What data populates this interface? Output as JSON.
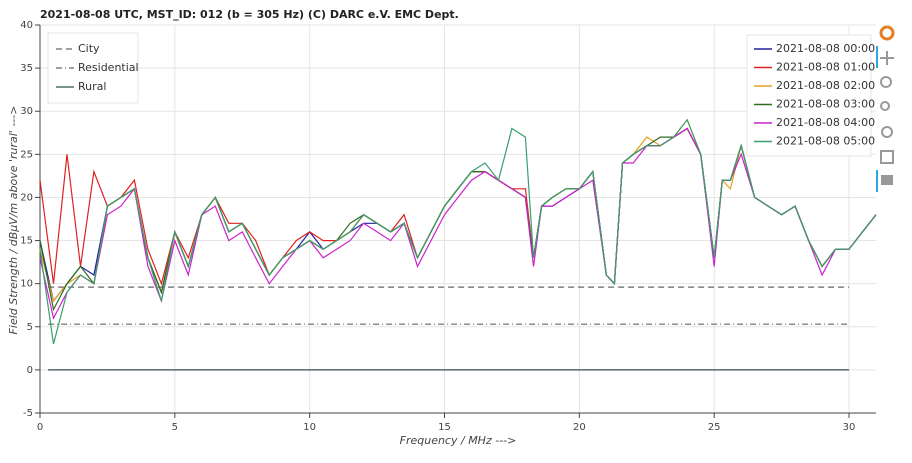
{
  "chart_data": {
    "type": "line",
    "title": "2021-08-08  UTC,  MST_ID:  012   (b = 305 Hz)   (C) DARC e.V. EMC Dept.",
    "x_label": "Frequency / MHz --->",
    "y_label": "Field Strength / dBµV/m above 'rural' --->",
    "xlim": [
      0,
      31
    ],
    "ylim": [
      -5,
      40
    ],
    "xticks": [
      0,
      5,
      10,
      15,
      20,
      25,
      30
    ],
    "yticks": [
      -5,
      0,
      5,
      10,
      15,
      20,
      25,
      30,
      35,
      40
    ],
    "grid": true,
    "reference_lines": [
      {
        "name": "City",
        "x": [
          0.3,
          30
        ],
        "values": [
          9.6,
          9.6
        ],
        "color": "#666666",
        "dash": "dash"
      },
      {
        "name": "Residential",
        "x": [
          0.3,
          30
        ],
        "values": [
          5.3,
          5.3
        ],
        "color": "#666666",
        "dash": "dashdot"
      },
      {
        "name": "Rural",
        "x": [
          0.3,
          30
        ],
        "values": [
          0,
          0
        ],
        "color": "#2f4f4f",
        "dash": "solid"
      }
    ],
    "x": [
      0,
      0.5,
      1,
      1.5,
      2,
      2.5,
      3,
      3.5,
      4,
      4.5,
      5,
      5.5,
      6,
      6.5,
      7,
      7.5,
      8,
      8.5,
      9,
      9.5,
      10,
      10.5,
      11,
      11.5,
      12,
      12.5,
      13,
      13.5,
      14,
      14.5,
      15,
      15.5,
      16,
      16.5,
      17,
      17.5,
      18,
      18.3,
      18.6,
      19,
      19.5,
      20,
      20.5,
      21,
      21.3,
      21.6,
      22,
      22.5,
      23,
      23.5,
      24,
      24.5,
      25,
      25.3,
      25.6,
      26,
      26.5,
      27,
      27.5,
      28,
      28.5,
      29,
      29.5,
      30,
      30.5,
      31
    ],
    "series": [
      {
        "name": "2021-08-08 00:00",
        "color": "#2020a0",
        "values": [
          15,
          8,
          10,
          12,
          11,
          19,
          20,
          21,
          13,
          9,
          16,
          12,
          18,
          20,
          16,
          17,
          14,
          11,
          13,
          14,
          16,
          14,
          15,
          16,
          17,
          17,
          16,
          17,
          13,
          16,
          19,
          21,
          23,
          23,
          22,
          21,
          20,
          13,
          19,
          19,
          20,
          21,
          23,
          11,
          10,
          24,
          25,
          26,
          26,
          27,
          28,
          25,
          13,
          22,
          22,
          26,
          20,
          19,
          18,
          19,
          15,
          12,
          14,
          14,
          16,
          18
        ]
      },
      {
        "name": "2021-08-08 01:00",
        "color": "#dd2222",
        "values": [
          22,
          10,
          25,
          12,
          23,
          19,
          20,
          22,
          14,
          10,
          16,
          13,
          18,
          20,
          17,
          17,
          15,
          11,
          13,
          15,
          16,
          15,
          15,
          16,
          18,
          17,
          16,
          18,
          13,
          16,
          19,
          21,
          23,
          23,
          22,
          21,
          21,
          13,
          19,
          20,
          21,
          21,
          23,
          11,
          10,
          24,
          25,
          26,
          26,
          27,
          28,
          25,
          13,
          22,
          22,
          26,
          20,
          19,
          18,
          19,
          15,
          12,
          14,
          14,
          16,
          18
        ]
      },
      {
        "name": "2021-08-08 02:00",
        "color": "#e8a020",
        "values": [
          14,
          8,
          10,
          11,
          10,
          19,
          20,
          21,
          13,
          9,
          16,
          12,
          18,
          20,
          16,
          17,
          14,
          11,
          13,
          14,
          15,
          14,
          15,
          16,
          18,
          17,
          16,
          17,
          13,
          16,
          19,
          21,
          23,
          23,
          22,
          21,
          20,
          13,
          19,
          20,
          21,
          21,
          23,
          11,
          10,
          24,
          25,
          27,
          26,
          27,
          29,
          25,
          13,
          22,
          21,
          26,
          20,
          19,
          18,
          19,
          15,
          12,
          14,
          14,
          16,
          18
        ]
      },
      {
        "name": "2021-08-08 03:00",
        "color": "#2f6b1f",
        "values": [
          15,
          7,
          10,
          12,
          10,
          19,
          20,
          21,
          13,
          9,
          16,
          12,
          18,
          20,
          16,
          17,
          14,
          11,
          13,
          14,
          15,
          14,
          15,
          17,
          18,
          17,
          16,
          17,
          13,
          16,
          19,
          21,
          23,
          23,
          22,
          21,
          20,
          13,
          19,
          20,
          21,
          21,
          23,
          11,
          10,
          24,
          25,
          26,
          27,
          27,
          28,
          25,
          13,
          22,
          22,
          26,
          20,
          19,
          18,
          19,
          15,
          12,
          14,
          14,
          16,
          18
        ]
      },
      {
        "name": "2021-08-08 04:00",
        "color": "#cc22cc",
        "values": [
          13,
          6,
          9,
          11,
          10,
          18,
          19,
          21,
          12,
          8,
          15,
          11,
          18,
          19,
          15,
          16,
          13,
          10,
          12,
          14,
          15,
          13,
          14,
          15,
          17,
          16,
          15,
          17,
          12,
          15,
          18,
          20,
          22,
          23,
          22,
          21,
          20,
          12,
          19,
          19,
          20,
          21,
          22,
          11,
          10,
          24,
          24,
          26,
          26,
          27,
          28,
          25,
          12,
          22,
          22,
          25,
          20,
          19,
          18,
          19,
          15,
          11,
          14,
          14,
          16,
          18
        ]
      },
      {
        "name": "2021-08-08 05:00",
        "color": "#3a9e6e",
        "values": [
          14,
          3,
          9,
          11,
          10,
          19,
          20,
          21,
          13,
          8,
          16,
          12,
          18,
          20,
          16,
          17,
          14,
          11,
          13,
          14,
          15,
          14,
          15,
          16,
          18,
          17,
          16,
          17,
          13,
          16,
          19,
          21,
          23,
          24,
          22,
          28,
          27,
          13,
          19,
          20,
          21,
          21,
          23,
          11,
          10,
          24,
          25,
          26,
          26,
          27,
          29,
          25,
          13,
          22,
          22,
          26,
          20,
          19,
          18,
          19,
          15,
          12,
          14,
          14,
          16,
          18
        ]
      }
    ]
  }
}
